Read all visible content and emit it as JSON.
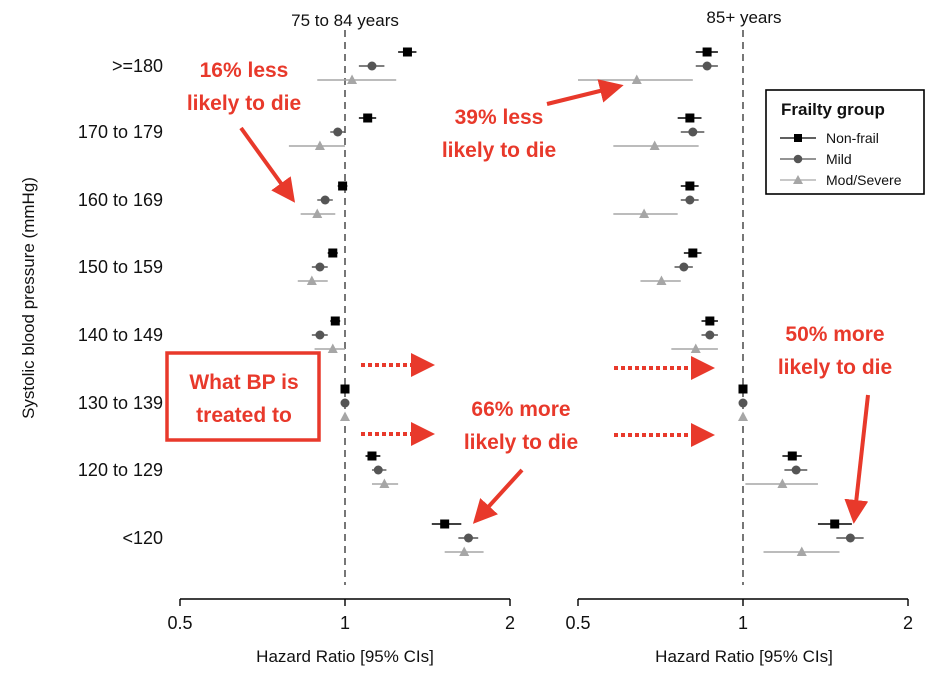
{
  "chart_data": {
    "type": "forest",
    "ylabel": "Systolic blood pressure (mmHg)",
    "categories": [
      ">=180",
      "170 to 179",
      "160 to 169",
      "150 to 159",
      "140 to 149",
      "130 to 139",
      "120 to 129",
      "<120"
    ],
    "x_scale": "log",
    "x_ticks": [
      "0.5",
      "1",
      "2"
    ],
    "xlim": [
      0.5,
      2
    ],
    "reference_line": 1,
    "legend": {
      "title": "Frailty group",
      "placement": "top-right",
      "entries": [
        {
          "name": "Non-frail",
          "marker": "square",
          "color": "#000000"
        },
        {
          "name": "Mild",
          "marker": "circle",
          "color": "#555555"
        },
        {
          "name": "Mod/Severe",
          "marker": "triangle",
          "color": "#a6a6a6"
        }
      ]
    },
    "panels": [
      {
        "title": "75 to 84 years",
        "xlabel": "Hazard Ratio [95% CIs]",
        "series": [
          {
            "name": "Non-frail",
            "est": [
              1.3,
              1.1,
              0.99,
              0.95,
              0.96,
              1.0,
              1.12,
              1.52
            ],
            "lower": [
              1.25,
              1.06,
              0.97,
              0.93,
              0.94,
              1.0,
              1.09,
              1.44
            ],
            "upper": [
              1.35,
              1.14,
              1.01,
              0.97,
              0.98,
              1.0,
              1.16,
              1.63
            ]
          },
          {
            "name": "Mild",
            "est": [
              1.12,
              0.97,
              0.92,
              0.9,
              0.9,
              1.0,
              1.15,
              1.68
            ],
            "lower": [
              1.06,
              0.94,
              0.89,
              0.87,
              0.87,
              1.0,
              1.12,
              1.61
            ],
            "upper": [
              1.18,
              1.0,
              0.95,
              0.93,
              0.93,
              1.0,
              1.19,
              1.75
            ]
          },
          {
            "name": "Mod/Severe",
            "est": [
              1.03,
              0.9,
              0.89,
              0.87,
              0.95,
              1.0,
              1.18,
              1.65
            ],
            "lower": [
              0.89,
              0.79,
              0.83,
              0.82,
              0.88,
              1.0,
              1.12,
              1.52
            ],
            "upper": [
              1.24,
              1.0,
              0.96,
              0.93,
              1.0,
              1.0,
              1.25,
              1.79
            ]
          }
        ]
      },
      {
        "title": "85+ years",
        "xlabel": "Hazard Ratio [95% CIs]",
        "series": [
          {
            "name": "Non-frail",
            "est": [
              0.86,
              0.8,
              0.8,
              0.81,
              0.87,
              1.0,
              1.23,
              1.47
            ],
            "lower": [
              0.82,
              0.76,
              0.77,
              0.78,
              0.84,
              1.0,
              1.18,
              1.37
            ],
            "upper": [
              0.9,
              0.84,
              0.83,
              0.84,
              0.9,
              1.0,
              1.28,
              1.58
            ]
          },
          {
            "name": "Mild",
            "est": [
              0.86,
              0.81,
              0.8,
              0.78,
              0.87,
              1.0,
              1.25,
              1.57
            ],
            "lower": [
              0.82,
              0.77,
              0.77,
              0.75,
              0.84,
              1.0,
              1.19,
              1.48
            ],
            "upper": [
              0.9,
              0.85,
              0.83,
              0.81,
              0.9,
              1.0,
              1.31,
              1.66
            ]
          },
          {
            "name": "Mod/Severe",
            "est": [
              0.64,
              0.69,
              0.66,
              0.71,
              0.82,
              1.0,
              1.18,
              1.28
            ],
            "lower": [
              0.5,
              0.58,
              0.58,
              0.65,
              0.74,
              1.0,
              1.01,
              1.09
            ],
            "upper": [
              0.81,
              0.83,
              0.76,
              0.77,
              0.9,
              1.0,
              1.37,
              1.5
            ]
          }
        ]
      }
    ],
    "annotations": [
      {
        "text": [
          "16% less",
          "likely to die"
        ],
        "color": "#e8392b"
      },
      {
        "text": [
          "39% less",
          "likely to die"
        ],
        "color": "#e8392b"
      },
      {
        "text": [
          "50% more",
          "likely to die"
        ],
        "color": "#e8392b"
      },
      {
        "text": [
          "66% more",
          "likely to die"
        ],
        "color": "#e8392b"
      },
      {
        "text": [
          "What BP is",
          "treated to"
        ],
        "color": "#e8392b",
        "boxed": true
      }
    ]
  }
}
